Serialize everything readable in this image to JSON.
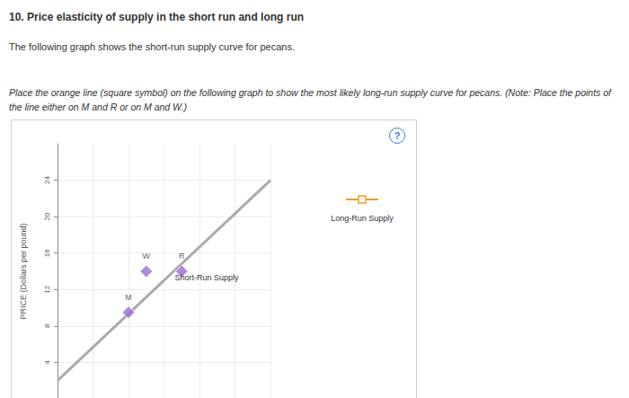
{
  "page": {
    "heading": "10. Price elasticity of supply in the short run and long run",
    "intro": "The following graph shows the short-run supply curve for pecans.",
    "instruction": "Place the orange line (square symbol) on the following graph to show the most likely long-run supply curve for pecans. (Note: Place the points of the line either on M and R or on M and W.)",
    "help": "?"
  },
  "palette": {
    "label": "Long-Run Supply",
    "color": "#f39c2c",
    "marker": "square"
  },
  "chart_data": {
    "type": "line",
    "y_label": "PRICE (Dollars per pound)",
    "xlim": [
      0,
      24
    ],
    "ylim": [
      0,
      28
    ],
    "xticks": [
      0,
      4,
      8,
      12,
      16,
      20,
      24
    ],
    "yticks": [
      4,
      8,
      12,
      16,
      20,
      24
    ],
    "grid": true,
    "tick_labels": "y",
    "series": [
      {
        "name": "Short-Run Supply",
        "type": "line",
        "color": "#aaaaaa",
        "x": [
          0,
          24
        ],
        "values": [
          2,
          24
        ],
        "marker": "none",
        "line_style": "solid"
      }
    ],
    "points": {
      "labels": [
        "M",
        "W",
        "R"
      ],
      "x": [
        8,
        10,
        14
      ],
      "values": [
        9.5,
        14,
        14
      ],
      "color": "#9b6fd1",
      "marker": "diamond"
    }
  }
}
